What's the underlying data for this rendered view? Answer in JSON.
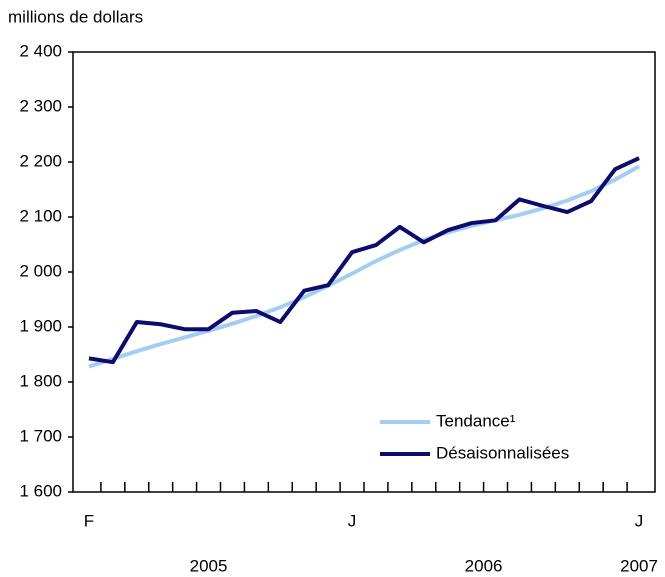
{
  "chart_data": {
    "type": "line",
    "y_axis_label": "millions de dollars",
    "categories": [
      "F",
      null,
      null,
      null,
      null,
      null,
      null,
      null,
      null,
      null,
      null,
      "J",
      null,
      null,
      null,
      null,
      null,
      null,
      null,
      null,
      null,
      null,
      null,
      "J"
    ],
    "year_labels": [
      "2005",
      "2006",
      "2007"
    ],
    "series": [
      {
        "name": "Tendance¹",
        "color": "#a3cdf2",
        "values": [
          1828,
          1842,
          1856,
          1869,
          1881,
          1893,
          1906,
          1920,
          1936,
          1954,
          1975,
          1997,
          2020,
          2040,
          2058,
          2072,
          2084,
          2094,
          2104,
          2116,
          2130,
          2147,
          2168,
          2192
        ]
      },
      {
        "name": "Désaisonnalisées",
        "color": "#0c0c6e",
        "values": [
          1843,
          1836,
          1909,
          1905,
          1896,
          1896,
          1926,
          1929,
          1909,
          1966,
          1976,
          2036,
          2049,
          2082,
          2054,
          2076,
          2089,
          2094,
          2132,
          2120,
          2109,
          2129,
          2187,
          2207
        ]
      }
    ],
    "ylim": [
      1600,
      2400
    ],
    "yticks": [
      {
        "value": 1600,
        "label": "1 600"
      },
      {
        "value": 1700,
        "label": "1 700"
      },
      {
        "value": 1800,
        "label": "1 800"
      },
      {
        "value": 1900,
        "label": "1 900"
      },
      {
        "value": 2000,
        "label": "2 000"
      },
      {
        "value": 2100,
        "label": "2 100"
      },
      {
        "value": 2200,
        "label": "2 200"
      },
      {
        "value": 2300,
        "label": "2 300"
      },
      {
        "value": 2400,
        "label": "2 400"
      }
    ],
    "legend": "lower right"
  }
}
